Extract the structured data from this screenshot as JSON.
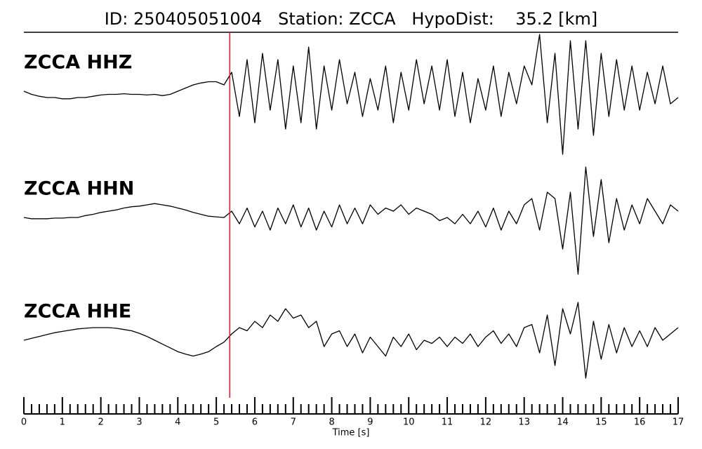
{
  "chart_data": {
    "type": "line",
    "title": "ID: 250405051004   Station: ZCCA   HypoDist:    35.2 [km]",
    "xlabel": "Time [s]",
    "xlim": [
      0,
      17
    ],
    "ylim": [
      -1,
      1
    ],
    "xticks": [
      0,
      1,
      2,
      3,
      4,
      5,
      6,
      7,
      8,
      9,
      10,
      11,
      12,
      13,
      14,
      15,
      16,
      17
    ],
    "minor_xticks": [
      0.2,
      0.4,
      0.6,
      0.8,
      1.2,
      1.4,
      1.6,
      1.8,
      2.2,
      2.4,
      2.6,
      2.8,
      3.2,
      3.4,
      3.6,
      3.8,
      4.2,
      4.4,
      4.6,
      4.8,
      5.2,
      5.4,
      5.6,
      5.8,
      6.2,
      6.4,
      6.6,
      6.8,
      7.2,
      7.4,
      7.6,
      7.8,
      8.2,
      8.4,
      8.6,
      8.8,
      9.2,
      9.4,
      9.6,
      9.8,
      10.2,
      10.4,
      10.6,
      10.8,
      11.2,
      11.4,
      11.6,
      11.8,
      12.2,
      12.4,
      12.6,
      12.8,
      13.2,
      13.4,
      13.6,
      13.8,
      14.2,
      14.4,
      14.6,
      14.8,
      15.2,
      15.4,
      15.6,
      15.8,
      16.2,
      16.4,
      16.6,
      16.8
    ],
    "vline": {
      "x": 5.35,
      "color": "#e8141a"
    },
    "label_color": "#4d9a0b",
    "x": [
      0,
      0.2,
      0.4,
      0.6,
      0.8,
      1,
      1.2,
      1.4,
      1.6,
      1.8,
      2,
      2.2,
      2.4,
      2.6,
      2.8,
      3,
      3.2,
      3.4,
      3.6,
      3.8,
      4,
      4.2,
      4.4,
      4.6,
      4.8,
      5,
      5.2,
      5.4,
      5.6,
      5.8,
      6,
      6.2,
      6.4,
      6.6,
      6.8,
      7,
      7.2,
      7.4,
      7.6,
      7.8,
      8,
      8.2,
      8.4,
      8.6,
      8.8,
      9,
      9.2,
      9.4,
      9.6,
      9.8,
      10,
      10.2,
      10.4,
      10.6,
      10.8,
      11,
      11.2,
      11.4,
      11.6,
      11.8,
      12,
      12.2,
      12.4,
      12.6,
      12.8,
      13,
      13.2,
      13.4,
      13.6,
      13.8,
      14,
      14.2,
      14.4,
      14.6,
      14.8,
      15,
      15.2,
      15.4,
      15.6,
      15.8,
      16,
      16.2,
      16.4,
      16.6,
      16.8,
      17
    ],
    "series": [
      {
        "name": "ZCCA HHZ",
        "color": "#000000",
        "values": [
          0,
          -0.05,
          -0.08,
          -0.1,
          -0.1,
          -0.12,
          -0.12,
          -0.1,
          -0.1,
          -0.08,
          -0.06,
          -0.05,
          -0.05,
          -0.04,
          -0.05,
          -0.05,
          -0.06,
          -0.05,
          -0.07,
          -0.05,
          0,
          0.05,
          0.1,
          0.13,
          0.15,
          0.15,
          0.1,
          0.3,
          -0.4,
          0.5,
          -0.5,
          0.6,
          -0.3,
          0.5,
          -0.6,
          0.4,
          -0.5,
          0.7,
          -0.6,
          0.4,
          -0.3,
          0.5,
          -0.2,
          0.3,
          -0.4,
          0.2,
          -0.3,
          0.4,
          -0.5,
          0.3,
          -0.3,
          0.5,
          -0.2,
          0.4,
          -0.3,
          0.5,
          -0.4,
          0.3,
          -0.5,
          0.2,
          -0.3,
          0.4,
          -0.4,
          0.3,
          -0.2,
          0.4,
          0.1,
          0.9,
          -0.5,
          0.6,
          -1.0,
          0.8,
          -0.6,
          0.8,
          -0.7,
          0.6,
          -0.4,
          0.5,
          -0.3,
          0.4,
          -0.3,
          0.3,
          -0.2,
          0.4,
          -0.2,
          -0.1
        ]
      },
      {
        "name": "ZCCA HHN",
        "color": "#000000",
        "values": [
          0,
          -0.02,
          -0.02,
          -0.02,
          -0.01,
          -0.01,
          0,
          0,
          0.03,
          0.05,
          0.08,
          0.1,
          0.12,
          0.15,
          0.17,
          0.18,
          0.2,
          0.22,
          0.2,
          0.18,
          0.15,
          0.12,
          0.08,
          0.05,
          0.02,
          0.01,
          0,
          0.1,
          -0.1,
          0.15,
          -0.15,
          0.1,
          -0.2,
          0.15,
          -0.1,
          0.2,
          -0.15,
          0.15,
          -0.2,
          0.1,
          -0.15,
          0.2,
          -0.1,
          0.15,
          -0.1,
          0.2,
          0.05,
          0.15,
          0.1,
          0.2,
          0.05,
          0.15,
          0.1,
          0.05,
          -0.05,
          0,
          -0.1,
          0.05,
          -0.1,
          0.1,
          -0.15,
          0.15,
          -0.2,
          0.1,
          -0.1,
          0.2,
          0.3,
          -0.2,
          0.4,
          0.3,
          -0.5,
          0.4,
          -0.9,
          0.8,
          -0.3,
          0.6,
          -0.4,
          0.3,
          -0.2,
          0.2,
          -0.1,
          0.3,
          0.1,
          -0.1,
          0.2,
          0.1
        ]
      },
      {
        "name": "ZCCA HHE",
        "color": "#000000",
        "values": [
          0,
          0.03,
          0.06,
          0.09,
          0.12,
          0.14,
          0.16,
          0.18,
          0.19,
          0.2,
          0.2,
          0.2,
          0.19,
          0.17,
          0.15,
          0.11,
          0.06,
          0,
          -0.06,
          -0.12,
          -0.18,
          -0.22,
          -0.25,
          -0.22,
          -0.18,
          -0.1,
          -0.03,
          0.1,
          0.2,
          0.15,
          0.3,
          0.2,
          0.4,
          0.3,
          0.5,
          0.35,
          0.4,
          0.2,
          0.3,
          -0.1,
          0.1,
          0.15,
          -0.1,
          0.1,
          -0.2,
          0.05,
          -0.1,
          -0.25,
          0.05,
          -0.1,
          0.1,
          -0.15,
          0,
          -0.05,
          0.05,
          -0.1,
          0.05,
          -0.05,
          0.1,
          -0.1,
          0.05,
          0.15,
          -0.05,
          0.1,
          -0.1,
          0.2,
          0.25,
          -0.2,
          0.4,
          -0.4,
          0.5,
          0.1,
          0.6,
          -0.6,
          0.3,
          -0.3,
          0.25,
          -0.2,
          0.2,
          -0.1,
          0.15,
          -0.1,
          0.2,
          0,
          0.1,
          0.2
        ]
      }
    ]
  }
}
